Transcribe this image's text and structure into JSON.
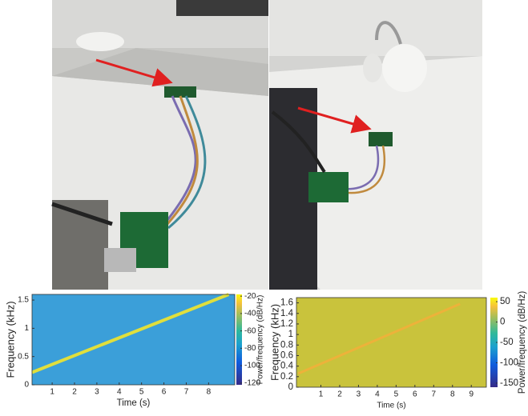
{
  "chart_data": [
    {
      "type": "spectrogram",
      "xlabel": "Time (s)",
      "ylabel": "Frequency (kHz)",
      "colorbar_label": "Power/frequency (dB/Hz)",
      "xlim": [
        0.1,
        9.17
      ],
      "xticks": [
        1,
        2,
        3,
        4,
        5,
        6,
        7,
        8
      ],
      "ylim": [
        0,
        1.6
      ],
      "yticks": [
        0,
        0.5,
        1,
        1.5
      ],
      "clim": [
        -122,
        -18
      ],
      "cticks": [
        -120,
        -100,
        -80,
        -60,
        -40,
        -20
      ],
      "background": "#3b9fd9",
      "series": [
        {
          "color": "#f3e62a",
          "x": [
            0.1,
            8.9
          ],
          "values": [
            0.22,
            1.6
          ]
        }
      ]
    },
    {
      "type": "spectrogram",
      "xlabel": "Time (s)",
      "ylabel": "Frequency (kHz)",
      "colorbar_label": "Power/frequency (dB/Hz)",
      "xlim": [
        -0.3,
        9.8
      ],
      "xticks": [
        1,
        2,
        3,
        4,
        5,
        6,
        7,
        8,
        9
      ],
      "ylim": [
        0,
        1.7
      ],
      "yticks": [
        0,
        0.2,
        0.4,
        0.6,
        0.8,
        1,
        1.2,
        1.4,
        1.6
      ],
      "clim": [
        -160,
        60
      ],
      "cticks": [
        -150,
        -100,
        -50,
        0,
        50
      ],
      "background": "#c9c33c",
      "series": [
        {
          "color": "#f1b03a",
          "x": [
            -0.2,
            8.4
          ],
          "values": [
            0.26,
            1.58
          ]
        }
      ]
    }
  ]
}
